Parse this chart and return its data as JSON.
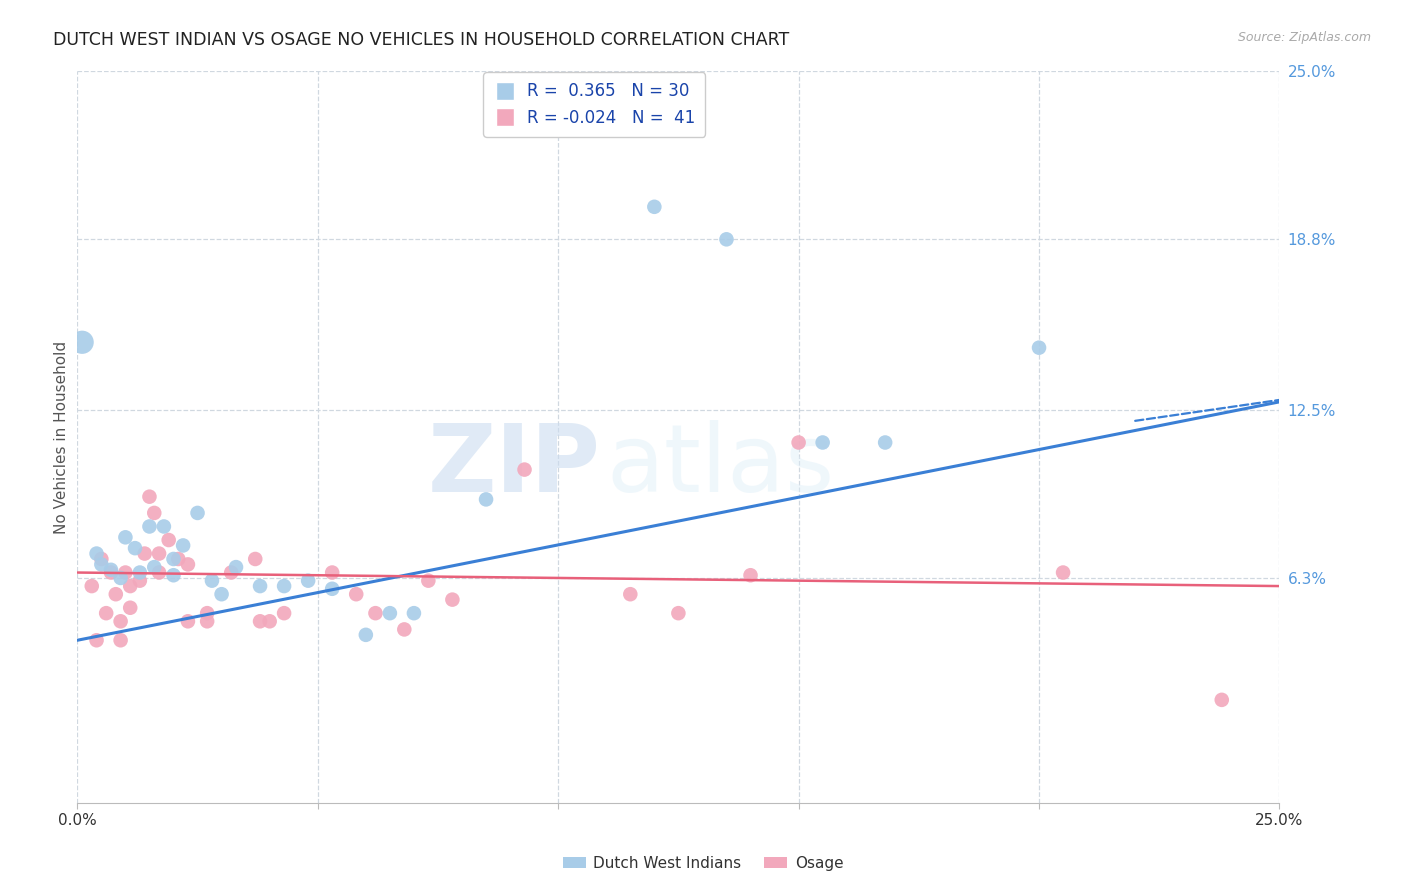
{
  "title": "DUTCH WEST INDIAN VS OSAGE NO VEHICLES IN HOUSEHOLD CORRELATION CHART",
  "source": "Source: ZipAtlas.com",
  "ylabel": "No Vehicles in Household",
  "xlim": [
    0.0,
    0.25
  ],
  "ylim": [
    -0.02,
    0.25
  ],
  "x_ticks": [
    0.0,
    0.05,
    0.1,
    0.15,
    0.2,
    0.25
  ],
  "x_tick_labels": [
    "0.0%",
    "",
    "",
    "",
    "",
    "25.0%"
  ],
  "y_ticks_right": [
    0.063,
    0.125,
    0.188,
    0.25
  ],
  "y_tick_labels_right": [
    "6.3%",
    "12.5%",
    "18.8%",
    "25.0%"
  ],
  "watermark_zip": "ZIP",
  "watermark_atlas": "atlas",
  "blue_color": "#a8cce8",
  "pink_color": "#f2a8bc",
  "blue_line_color": "#3a7fd5",
  "pink_line_color": "#e8607a",
  "grid_color": "#d0d8e0",
  "title_color": "#222222",
  "axis_label_color": "#555555",
  "right_tick_color": "#5599dd",
  "blue_dots": [
    [
      0.001,
      0.15
    ],
    [
      0.004,
      0.072
    ],
    [
      0.005,
      0.068
    ],
    [
      0.007,
      0.066
    ],
    [
      0.009,
      0.063
    ],
    [
      0.01,
      0.078
    ],
    [
      0.012,
      0.074
    ],
    [
      0.013,
      0.065
    ],
    [
      0.015,
      0.082
    ],
    [
      0.016,
      0.067
    ],
    [
      0.018,
      0.082
    ],
    [
      0.02,
      0.07
    ],
    [
      0.02,
      0.064
    ],
    [
      0.022,
      0.075
    ],
    [
      0.025,
      0.087
    ],
    [
      0.028,
      0.062
    ],
    [
      0.03,
      0.057
    ],
    [
      0.033,
      0.067
    ],
    [
      0.038,
      0.06
    ],
    [
      0.043,
      0.06
    ],
    [
      0.048,
      0.062
    ],
    [
      0.053,
      0.059
    ],
    [
      0.06,
      0.042
    ],
    [
      0.065,
      0.05
    ],
    [
      0.07,
      0.05
    ],
    [
      0.085,
      0.092
    ],
    [
      0.12,
      0.2
    ],
    [
      0.135,
      0.188
    ],
    [
      0.155,
      0.113
    ],
    [
      0.168,
      0.113
    ],
    [
      0.2,
      0.148
    ]
  ],
  "pink_dots": [
    [
      0.003,
      0.06
    ],
    [
      0.004,
      0.04
    ],
    [
      0.005,
      0.07
    ],
    [
      0.006,
      0.05
    ],
    [
      0.007,
      0.065
    ],
    [
      0.008,
      0.057
    ],
    [
      0.009,
      0.047
    ],
    [
      0.009,
      0.04
    ],
    [
      0.01,
      0.065
    ],
    [
      0.011,
      0.06
    ],
    [
      0.011,
      0.052
    ],
    [
      0.013,
      0.062
    ],
    [
      0.014,
      0.072
    ],
    [
      0.015,
      0.093
    ],
    [
      0.016,
      0.087
    ],
    [
      0.017,
      0.072
    ],
    [
      0.017,
      0.065
    ],
    [
      0.019,
      0.077
    ],
    [
      0.021,
      0.07
    ],
    [
      0.023,
      0.068
    ],
    [
      0.023,
      0.047
    ],
    [
      0.027,
      0.05
    ],
    [
      0.027,
      0.047
    ],
    [
      0.032,
      0.065
    ],
    [
      0.037,
      0.07
    ],
    [
      0.038,
      0.047
    ],
    [
      0.04,
      0.047
    ],
    [
      0.043,
      0.05
    ],
    [
      0.053,
      0.065
    ],
    [
      0.058,
      0.057
    ],
    [
      0.062,
      0.05
    ],
    [
      0.068,
      0.044
    ],
    [
      0.073,
      0.062
    ],
    [
      0.078,
      0.055
    ],
    [
      0.093,
      0.103
    ],
    [
      0.115,
      0.057
    ],
    [
      0.125,
      0.05
    ],
    [
      0.14,
      0.064
    ],
    [
      0.15,
      0.113
    ],
    [
      0.205,
      0.065
    ],
    [
      0.238,
      0.018
    ]
  ],
  "blue_line": [
    0.0,
    0.04,
    0.25,
    0.128
  ],
  "pink_line": [
    0.0,
    0.065,
    0.25,
    0.06
  ],
  "blue_dash_line": [
    0.22,
    0.121,
    0.255,
    0.13
  ],
  "dot_size": 110,
  "large_dot_size": 280
}
